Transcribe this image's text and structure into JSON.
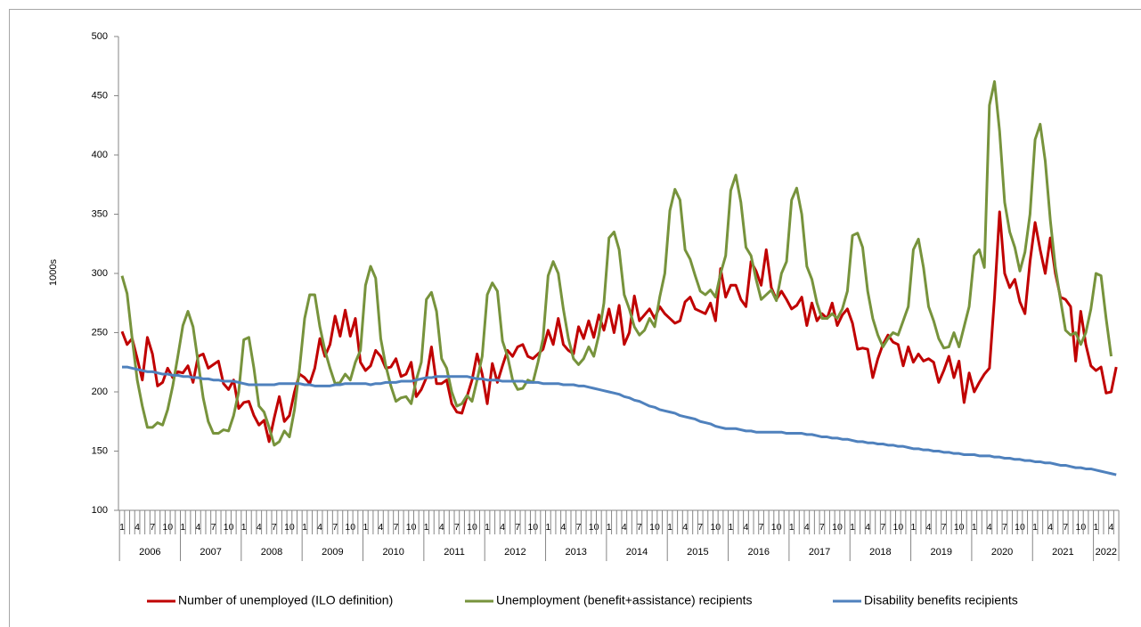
{
  "chart_data": {
    "type": "line",
    "y_axis_label": "1000s",
    "ylim": [
      100,
      500
    ],
    "yticks": [
      100,
      150,
      200,
      250,
      300,
      350,
      400,
      450,
      500
    ],
    "grid": false,
    "legend": "bottom",
    "years": [
      "2006",
      "2007",
      "2008",
      "2009",
      "2010",
      "2011",
      "2012",
      "2013",
      "2014",
      "2015",
      "2016",
      "2017",
      "2018",
      "2019",
      "2020",
      "2021",
      "2022"
    ],
    "categories": [
      "1",
      null,
      null,
      "4",
      null,
      null,
      "7",
      null,
      null,
      "10",
      null,
      null,
      "1",
      null,
      null,
      "4",
      null,
      null,
      "7",
      null,
      null,
      "10",
      null,
      null,
      "1",
      null,
      null,
      "4",
      null,
      null,
      "7",
      null,
      null,
      "10",
      null,
      null,
      "1",
      null,
      null,
      "4",
      null,
      null,
      "7",
      null,
      null,
      "10",
      null,
      null,
      "1",
      null,
      null,
      "4",
      null,
      null,
      "7",
      null,
      null,
      "10",
      null,
      null,
      "1",
      null,
      null,
      "4",
      null,
      null,
      "7",
      null,
      null,
      "10",
      null,
      null,
      "1",
      null,
      null,
      "4",
      null,
      null,
      "7",
      null,
      null,
      "10",
      null,
      null,
      "1",
      null,
      null,
      "4",
      null,
      null,
      "7",
      null,
      null,
      "10",
      null,
      null,
      "1",
      null,
      null,
      "4",
      null,
      null,
      "7",
      null,
      null,
      "10",
      null,
      null,
      "1",
      null,
      null,
      "4",
      null,
      null,
      "7",
      null,
      null,
      "10",
      null,
      null,
      "1",
      null,
      null,
      "4",
      null,
      null,
      "7",
      null,
      null,
      "10",
      null,
      null,
      "1",
      null,
      null,
      "4",
      null,
      null,
      "7",
      null,
      null,
      "10",
      null,
      null,
      "1",
      null,
      null,
      "4",
      null,
      null,
      "7",
      null,
      null,
      "10",
      null,
      null,
      "1",
      null,
      null,
      "4",
      null,
      null,
      "7",
      null,
      null,
      "10",
      null,
      null,
      "1",
      null,
      null,
      "4",
      null,
      null,
      "7",
      null,
      null,
      "10",
      null,
      null,
      "1",
      null,
      null,
      "4",
      null,
      null,
      "7",
      null,
      null,
      "10",
      null,
      null,
      "1",
      null,
      null,
      "4",
      null
    ],
    "series": [
      {
        "name": "Number of unemployed (ILO definition)",
        "color": "#c00000",
        "values": [
          251,
          240,
          245,
          228,
          210,
          246,
          232,
          205,
          208,
          220,
          212,
          217,
          216,
          222,
          208,
          230,
          232,
          220,
          223,
          226,
          207,
          202,
          210,
          186,
          191,
          192,
          180,
          172,
          176,
          158,
          178,
          196,
          175,
          180,
          200,
          215,
          212,
          207,
          220,
          245,
          230,
          240,
          264,
          247,
          269,
          247,
          262,
          225,
          218,
          222,
          235,
          230,
          220,
          221,
          228,
          213,
          215,
          225,
          196,
          202,
          212,
          238,
          207,
          207,
          210,
          190,
          183,
          182,
          196,
          210,
          232,
          215,
          190,
          224,
          208,
          222,
          235,
          230,
          238,
          240,
          230,
          228,
          232,
          236,
          252,
          240,
          262,
          240,
          235,
          232,
          255,
          245,
          260,
          246,
          265,
          252,
          270,
          250,
          273,
          240,
          250,
          281,
          260,
          265,
          270,
          262,
          272,
          266,
          262,
          258,
          260,
          276,
          280,
          270,
          268,
          266,
          275,
          260,
          304,
          280,
          290,
          290,
          278,
          272,
          310,
          302,
          290,
          320,
          288,
          278,
          285,
          278,
          270,
          273,
          280,
          256,
          275,
          260,
          266,
          262,
          275,
          256,
          265,
          270,
          258,
          236,
          237,
          236,
          212,
          228,
          240,
          248,
          242,
          240,
          222,
          238,
          225,
          232,
          226,
          228,
          225,
          208,
          218,
          230,
          212,
          226,
          191,
          216,
          200,
          208,
          215,
          220,
          280,
          352,
          300,
          288,
          295,
          276,
          266,
          310,
          343,
          320,
          300,
          330,
          300,
          280,
          278,
          272,
          226,
          268,
          240,
          222,
          218,
          221,
          199,
          200,
          221
        ]
      },
      {
        "name": "Unemployment (benefit+assistance) recipients",
        "color": "#77933c",
        "values": [
          298,
          283,
          245,
          210,
          188,
          170,
          170,
          174,
          172,
          185,
          205,
          230,
          256,
          268,
          255,
          225,
          195,
          175,
          165,
          165,
          168,
          167,
          180,
          200,
          244,
          246,
          220,
          188,
          183,
          170,
          155,
          158,
          167,
          162,
          185,
          220,
          262,
          282,
          282,
          255,
          235,
          220,
          207,
          208,
          215,
          210,
          225,
          235,
          290,
          306,
          296,
          245,
          222,
          205,
          192,
          195,
          196,
          190,
          210,
          225,
          278,
          284,
          268,
          228,
          220,
          200,
          188,
          190,
          197,
          192,
          210,
          230,
          282,
          292,
          285,
          243,
          230,
          210,
          202,
          203,
          210,
          208,
          225,
          245,
          298,
          310,
          300,
          270,
          245,
          228,
          223,
          228,
          238,
          230,
          248,
          275,
          330,
          335,
          320,
          282,
          270,
          255,
          248,
          252,
          262,
          255,
          280,
          300,
          353,
          371,
          362,
          320,
          312,
          298,
          285,
          282,
          286,
          280,
          300,
          315,
          370,
          383,
          360,
          322,
          315,
          295,
          278,
          282,
          286,
          277,
          300,
          310,
          362,
          372,
          350,
          306,
          295,
          275,
          262,
          262,
          266,
          262,
          270,
          285,
          332,
          334,
          322,
          285,
          262,
          248,
          238,
          245,
          250,
          248,
          260,
          272,
          320,
          329,
          305,
          272,
          260,
          245,
          237,
          238,
          250,
          238,
          255,
          272,
          315,
          320,
          305,
          442,
          462,
          420,
          360,
          335,
          322,
          302,
          318,
          350,
          413,
          426,
          395,
          345,
          305,
          278,
          252,
          248,
          250,
          240,
          250,
          270,
          300,
          298,
          262,
          230,
          null
        ]
      },
      {
        "name": "Disability benefits recipients",
        "color": "#4f81bd",
        "values": [
          221,
          221,
          220,
          219,
          218,
          217,
          217,
          216,
          215,
          215,
          214,
          214,
          213,
          213,
          212,
          212,
          211,
          211,
          210,
          210,
          209,
          209,
          209,
          208,
          207,
          206,
          206,
          206,
          206,
          206,
          206,
          207,
          207,
          207,
          207,
          207,
          206,
          206,
          205,
          205,
          205,
          205,
          206,
          206,
          207,
          207,
          207,
          207,
          207,
          206,
          207,
          207,
          208,
          208,
          208,
          209,
          209,
          209,
          210,
          211,
          212,
          212,
          213,
          213,
          213,
          213,
          213,
          213,
          213,
          212,
          211,
          211,
          210,
          210,
          210,
          209,
          209,
          209,
          209,
          209,
          208,
          208,
          208,
          207,
          207,
          207,
          207,
          206,
          206,
          206,
          205,
          205,
          204,
          203,
          202,
          201,
          200,
          199,
          198,
          196,
          195,
          193,
          192,
          190,
          188,
          187,
          185,
          184,
          183,
          182,
          180,
          179,
          178,
          177,
          175,
          174,
          173,
          171,
          170,
          169,
          169,
          169,
          168,
          167,
          167,
          166,
          166,
          166,
          166,
          166,
          166,
          165,
          165,
          165,
          165,
          164,
          164,
          163,
          162,
          162,
          161,
          161,
          160,
          160,
          159,
          158,
          158,
          157,
          157,
          156,
          156,
          155,
          155,
          154,
          154,
          153,
          152,
          152,
          151,
          151,
          150,
          150,
          149,
          149,
          148,
          148,
          147,
          147,
          147,
          146,
          146,
          146,
          145,
          145,
          144,
          144,
          143,
          143,
          142,
          142,
          141,
          141,
          140,
          140,
          139,
          138,
          138,
          137,
          136,
          136,
          135,
          135,
          134,
          133,
          132,
          131,
          130
        ]
      }
    ]
  }
}
